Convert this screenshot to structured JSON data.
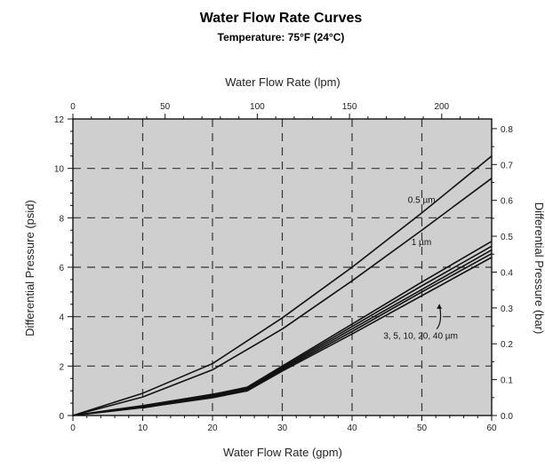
{
  "chart_data": {
    "type": "line",
    "title": "Water Flow Rate Curves",
    "subtitle": "Temperature: 75°F (24°C)",
    "xlabel": "Water Flow Rate (gpm)",
    "ylabel": "Differential Pressure (psid)",
    "x2label": "Water Flow Rate (lpm)",
    "y2label": "Differential Pressure (bar)",
    "xlim": [
      0,
      60
    ],
    "ylim": [
      0,
      12
    ],
    "x2lim": [
      0,
      227.1
    ],
    "y2lim": [
      0,
      0.827
    ],
    "xticks": [
      0,
      10,
      20,
      30,
      40,
      50,
      60
    ],
    "yticks": [
      0,
      2,
      4,
      6,
      8,
      10,
      12
    ],
    "x2ticks": [
      0,
      50,
      100,
      150,
      200
    ],
    "y2ticks": [
      "0.0",
      "0.1",
      "0.2",
      "0.3",
      "0.4",
      "0.5",
      "0.6",
      "0.7",
      "0.8"
    ],
    "grid": true,
    "background": "#cfcfcf",
    "line_color": "#111111",
    "series": [
      {
        "name": "0.5 µm",
        "x": [
          0,
          10,
          20,
          30,
          40,
          50,
          60
        ],
        "y": [
          0,
          0.9,
          2.1,
          3.95,
          6.0,
          8.2,
          10.5
        ]
      },
      {
        "name": "1 µm",
        "x": [
          0,
          10,
          20,
          30,
          40,
          50,
          60
        ],
        "y": [
          0,
          0.75,
          1.85,
          3.5,
          5.45,
          7.5,
          9.6
        ]
      },
      {
        "name": "3 µm",
        "x": [
          0,
          10,
          20,
          25,
          30,
          40,
          50,
          60
        ],
        "y": [
          0,
          0.4,
          0.85,
          1.15,
          2.0,
          3.7,
          5.4,
          7.05
        ]
      },
      {
        "name": "5 µm",
        "x": [
          0,
          10,
          20,
          25,
          30,
          40,
          50,
          60
        ],
        "y": [
          0,
          0.38,
          0.82,
          1.1,
          1.95,
          3.6,
          5.25,
          6.85
        ]
      },
      {
        "name": "10 µm",
        "x": [
          0,
          10,
          20,
          25,
          30,
          40,
          50,
          60
        ],
        "y": [
          0,
          0.36,
          0.78,
          1.07,
          1.9,
          3.5,
          5.1,
          6.7
        ]
      },
      {
        "name": "20 µm",
        "x": [
          0,
          10,
          20,
          25,
          30,
          40,
          50,
          60
        ],
        "y": [
          0,
          0.34,
          0.75,
          1.03,
          1.85,
          3.4,
          5.0,
          6.55
        ]
      },
      {
        "name": "40 µm",
        "x": [
          0,
          10,
          20,
          25,
          30,
          40,
          50,
          60
        ],
        "y": [
          0,
          0.32,
          0.72,
          1.0,
          1.8,
          3.3,
          4.85,
          6.4
        ]
      }
    ],
    "annotations": [
      {
        "text": "0.5 µm",
        "x": 48,
        "y": 8.6
      },
      {
        "text": "1 µm",
        "x": 48.5,
        "y": 6.9
      },
      {
        "text": "3, 5, 10, 20, 40 µm",
        "x": 44.5,
        "y": 3.1
      }
    ]
  }
}
